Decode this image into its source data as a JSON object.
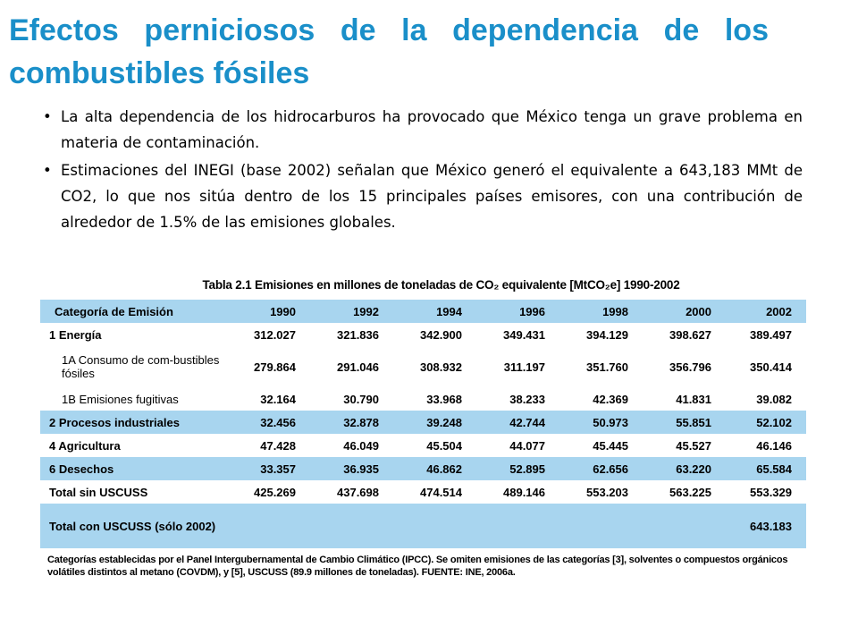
{
  "slide": {
    "title": "Efectos perniciosos de la dependencia de los combustibles fósiles",
    "bullets": [
      "La alta dependencia de los hidrocarburos ha provocado que México tenga un grave problema en materia de contaminación.",
      "Estimaciones del INEGI (base 2002) señalan que México generó el equivalente a 643,183 MMt de CO2, lo que nos sitúa dentro de los 15 principales países emisores, con una contribución de alrededor de 1.5% de las emisiones globales."
    ]
  },
  "table": {
    "caption": "Tabla 2.1 Emisiones en millones de toneladas de CO₂ equivalente [MtCO₂e] 1990-2002",
    "header": [
      "Categoría de Emisión",
      "1990",
      "1992",
      "1994",
      "1996",
      "1998",
      "2000",
      "2002"
    ],
    "rows": [
      {
        "label": "1 Energía",
        "values": [
          "312.027",
          "321.836",
          "342.900",
          "349.431",
          "394.129",
          "398.627",
          "389.497"
        ]
      },
      {
        "label": "1A Consumo de com-bustibles fósiles",
        "values": [
          "279.864",
          "291.046",
          "308.932",
          "311.197",
          "351.760",
          "356.796",
          "350.414"
        ]
      },
      {
        "label": "1B Emisiones fugitivas",
        "values": [
          "32.164",
          "30.790",
          "33.968",
          "38.233",
          "42.369",
          "41.831",
          "39.082"
        ]
      },
      {
        "label": "2 Procesos industriales",
        "values": [
          "32.456",
          "32.878",
          "39.248",
          "42.744",
          "50.973",
          "55.851",
          "52.102"
        ]
      },
      {
        "label": "4 Agricultura",
        "values": [
          "47.428",
          "46.049",
          "45.504",
          "44.077",
          "45.445",
          "45.527",
          "46.146"
        ]
      },
      {
        "label": "6 Desechos",
        "values": [
          "33.357",
          "36.935",
          "46.862",
          "52.895",
          "62.656",
          "63.220",
          "65.584"
        ]
      },
      {
        "label": "Total sin USCUSS",
        "values": [
          "425.269",
          "437.698",
          "474.514",
          "489.146",
          "553.203",
          "563.225",
          "553.329"
        ]
      },
      {
        "label": "Total con USCUSS (sólo 2002)",
        "values": [
          "",
          "",
          "",
          "",
          "",
          "",
          "643.183"
        ]
      }
    ],
    "note": "Categorías establecidas por el Panel Intergubernamental de Cambio Climático (IPCC). Se omiten emisiones de las categorías [3], solventes o compuestos orgánicos volátiles distintos al metano (COVDM), y [5], USCUSS (89.9 millones de toneladas). FUENTE: INE, 2006a."
  },
  "colors": {
    "title": "#1a8fc9",
    "row_band": "#a8d5ef"
  }
}
